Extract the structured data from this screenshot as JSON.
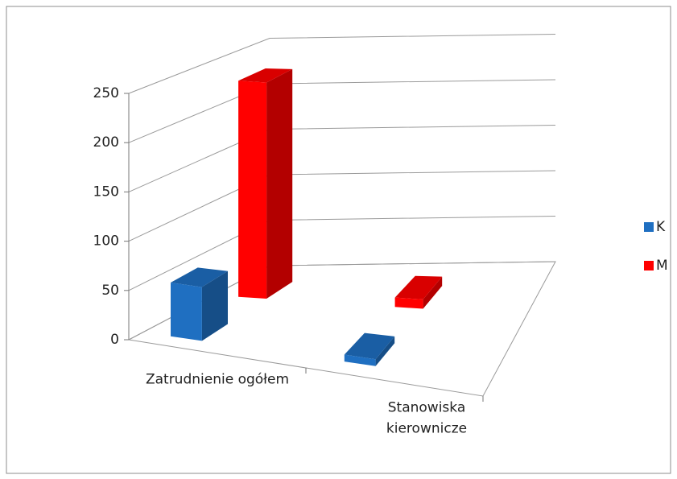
{
  "chart_data": {
    "type": "bar3d",
    "categories": [
      "Zatrudnienie ogółem",
      "Stanowiska kierownicze"
    ],
    "series": [
      {
        "name": "K",
        "color": "#1f6fc1",
        "values": [
          55,
          7
        ]
      },
      {
        "name": "M",
        "color": "#ff0000",
        "values": [
          230,
          10
        ]
      }
    ],
    "ylim": [
      0,
      250
    ],
    "yticks": [
      0,
      50,
      100,
      150,
      200,
      250
    ],
    "grid": true,
    "legend": "right"
  }
}
